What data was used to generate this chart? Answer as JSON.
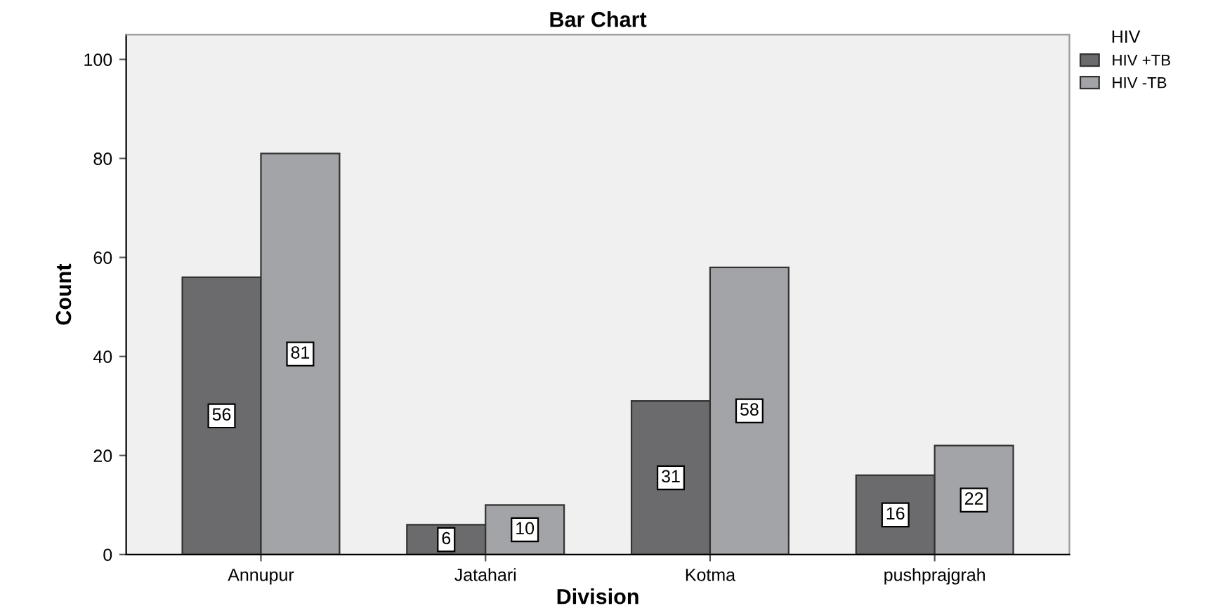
{
  "chart_data": {
    "type": "bar",
    "title": "Bar Chart",
    "xlabel": "Division",
    "ylabel": "Count",
    "legend_title": "HIV",
    "categories": [
      "Annupur",
      "Jatahari",
      "Kotma",
      "pushprajgrah"
    ],
    "series": [
      {
        "name": "HIV +TB",
        "color": "#6b6b6e",
        "values": [
          56,
          6,
          31,
          16
        ]
      },
      {
        "name": "HIV -TB",
        "color": "#a3a4a8",
        "values": [
          81,
          10,
          58,
          22
        ]
      }
    ],
    "ylim": [
      0,
      105
    ],
    "yticks": [
      0,
      20,
      40,
      60,
      80,
      100
    ],
    "data_labels": true,
    "grid": false,
    "legend": "top right"
  }
}
